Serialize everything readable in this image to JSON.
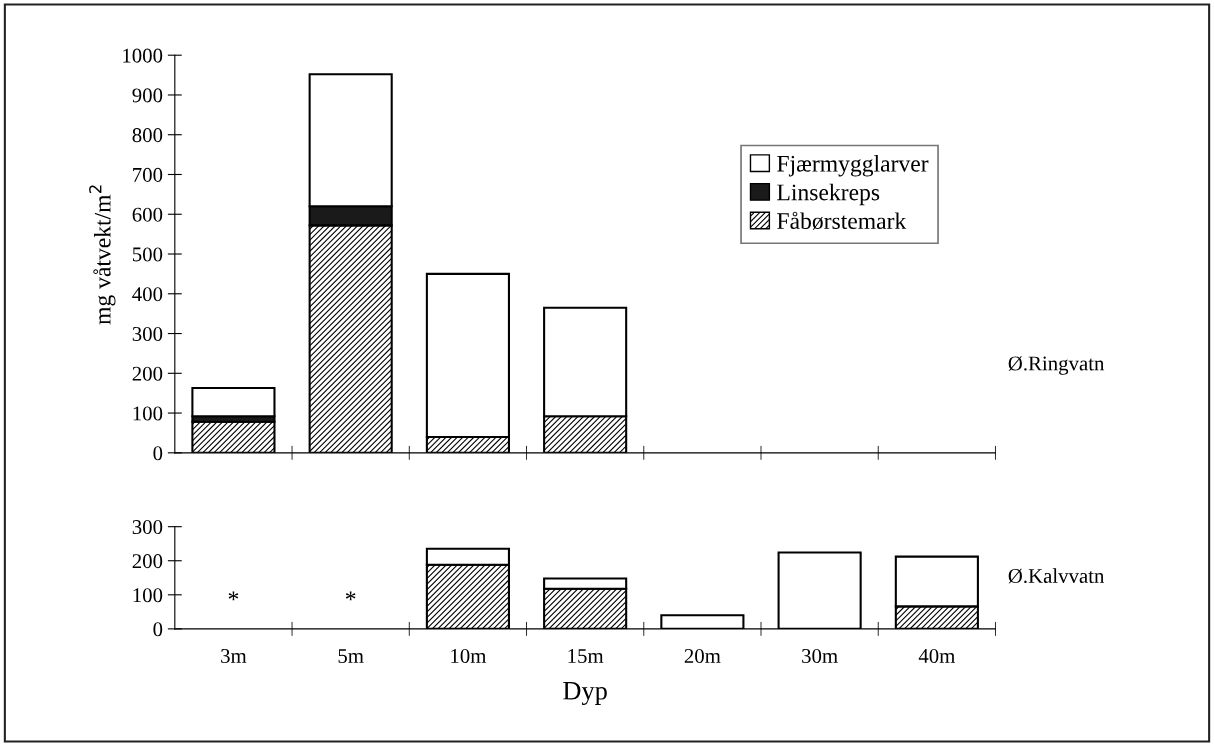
{
  "chart_data": [
    {
      "type": "bar",
      "stacked": true,
      "categories": [
        null,
        null,
        null,
        null,
        null,
        null,
        null
      ],
      "ylabel": "mg våtvekt/m$^{2}$",
      "ylim": [
        0,
        1000
      ],
      "yticks": [
        0,
        100,
        200,
        300,
        400,
        500,
        600,
        700,
        800,
        900,
        1000
      ],
      "tick_labels": "y",
      "legend": "right",
      "grid": false,
      "annotations": [
        "Ø.Ringvatn"
      ],
      "series": [
        {
          "name": "Fåbørstemark",
          "color": "#000000",
          "values": [
            78,
            572,
            40,
            92,
            null,
            null,
            null
          ]
        },
        {
          "name": "Linsekreps",
          "color": "#1a1a1a",
          "values": [
            14,
            48,
            0,
            0,
            null,
            null,
            null
          ]
        },
        {
          "name": "Fjærmygglarver",
          "color": "#ffffff",
          "values": [
            71,
            332,
            410,
            273,
            null,
            null,
            null
          ]
        }
      ]
    },
    {
      "type": "bar",
      "stacked": true,
      "categories": [
        "3m",
        "5m",
        "10m",
        "15m",
        "20m",
        "30m",
        "40m"
      ],
      "xlabel": "Dyp",
      "ylim": [
        0,
        300
      ],
      "yticks": [
        0,
        100,
        200,
        300
      ],
      "grid": false,
      "annotations": [
        "*",
        "*",
        "Ø.Kalvvatn"
      ],
      "series": [
        {
          "color": "#000000",
          "values": [
            null,
            null,
            188,
            118,
            0,
            0,
            66
          ]
        },
        {
          "color": "#1a1a1a",
          "values": [
            null,
            null,
            0,
            0,
            0,
            0,
            0
          ]
        },
        {
          "color": "#ffffff",
          "values": [
            null,
            null,
            47,
            30,
            40,
            224,
            146
          ]
        }
      ]
    }
  ]
}
